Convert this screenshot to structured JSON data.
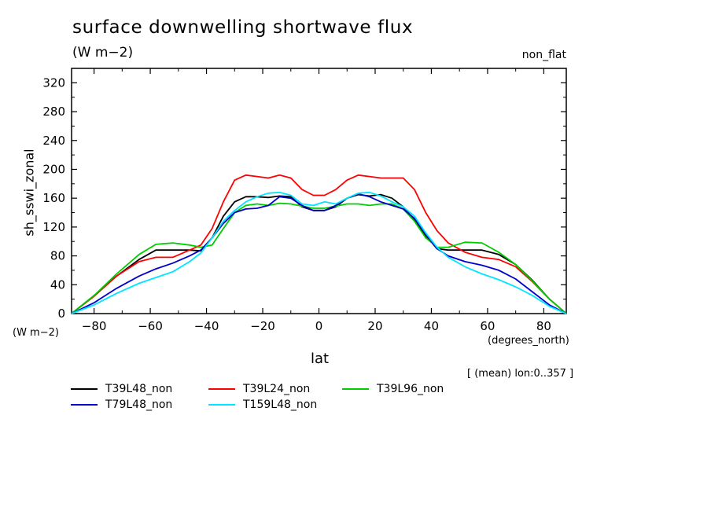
{
  "chart_data": {
    "type": "line",
    "title": "surface downwelling shortwave flux",
    "subtitle": "(W m−2)",
    "corner_label": "non_flat",
    "ylabel": "sh_sswi_zonal",
    "yunits": "(W m−2)",
    "xlabel": "lat",
    "xunits": "(degrees_north)",
    "note": "[ (mean) lon:0..357 ]",
    "xlim": [
      -88,
      88
    ],
    "ylim": [
      0,
      340
    ],
    "xticks": [
      -80,
      -60,
      -40,
      -20,
      0,
      20,
      40,
      60,
      80
    ],
    "xtick_labels": [
      "−80",
      "−60",
      "−40",
      "−20",
      "0",
      "20",
      "40",
      "60",
      "80"
    ],
    "yticks": [
      0,
      40,
      80,
      120,
      160,
      200,
      240,
      280,
      320
    ],
    "ytick_labels": [
      "0",
      "40",
      "80",
      "120",
      "160",
      "200",
      "240",
      "280",
      "320"
    ],
    "grid": false,
    "legend_position": "bottom",
    "series": [
      {
        "name": "T39L48_non",
        "color": "#000000",
        "x": [
          -88,
          -80,
          -72,
          -64,
          -58,
          -52,
          -46,
          -42,
          -38,
          -34,
          -30,
          -26,
          -22,
          -18,
          -14,
          -10,
          -6,
          -2,
          2,
          6,
          10,
          14,
          18,
          22,
          26,
          30,
          34,
          38,
          42,
          46,
          52,
          58,
          64,
          70,
          76,
          82,
          88
        ],
        "y": [
          0,
          25,
          52,
          75,
          88,
          88,
          88,
          87,
          105,
          135,
          155,
          162,
          162,
          161,
          163,
          162,
          148,
          143,
          143,
          148,
          160,
          165,
          163,
          165,
          160,
          148,
          130,
          108,
          90,
          88,
          88,
          88,
          82,
          68,
          46,
          20,
          0
        ]
      },
      {
        "name": "T39L24_non",
        "color": "#ff0000",
        "x": [
          -88,
          -80,
          -72,
          -64,
          -58,
          -52,
          -46,
          -42,
          -38,
          -34,
          -30,
          -26,
          -22,
          -18,
          -14,
          -10,
          -6,
          -2,
          2,
          6,
          10,
          14,
          18,
          22,
          26,
          30,
          34,
          38,
          42,
          46,
          52,
          58,
          64,
          70,
          76,
          82,
          88
        ],
        "y": [
          0,
          24,
          52,
          72,
          78,
          78,
          88,
          95,
          118,
          155,
          185,
          192,
          190,
          188,
          192,
          188,
          172,
          164,
          164,
          172,
          185,
          192,
          190,
          188,
          188,
          188,
          172,
          140,
          115,
          98,
          85,
          78,
          75,
          65,
          44,
          20,
          0
        ]
      },
      {
        "name": "T39L96_non",
        "color": "#00cc00",
        "x": [
          -88,
          -80,
          -72,
          -64,
          -58,
          -52,
          -46,
          -42,
          -38,
          -34,
          -30,
          -26,
          -22,
          -18,
          -14,
          -10,
          -6,
          -2,
          2,
          6,
          10,
          14,
          18,
          22,
          26,
          30,
          34,
          38,
          42,
          46,
          52,
          58,
          64,
          70,
          76,
          82,
          88
        ],
        "y": [
          0,
          25,
          55,
          82,
          96,
          98,
          95,
          92,
          95,
          118,
          140,
          150,
          152,
          150,
          153,
          152,
          149,
          146,
          146,
          149,
          152,
          152,
          150,
          152,
          152,
          145,
          128,
          105,
          92,
          92,
          99,
          98,
          85,
          68,
          45,
          20,
          0
        ]
      },
      {
        "name": "T79L48_non",
        "color": "#0000cc",
        "x": [
          -88,
          -80,
          -72,
          -64,
          -58,
          -52,
          -46,
          -42,
          -38,
          -34,
          -30,
          -26,
          -22,
          -18,
          -14,
          -10,
          -6,
          -2,
          2,
          6,
          10,
          14,
          18,
          22,
          26,
          30,
          34,
          38,
          42,
          46,
          52,
          58,
          64,
          70,
          76,
          82,
          88
        ],
        "y": [
          0,
          15,
          35,
          52,
          62,
          70,
          80,
          88,
          105,
          125,
          140,
          145,
          146,
          150,
          162,
          160,
          150,
          143,
          143,
          150,
          160,
          166,
          162,
          155,
          150,
          145,
          132,
          110,
          90,
          80,
          72,
          67,
          60,
          48,
          30,
          12,
          0
        ]
      },
      {
        "name": "T159L48_non",
        "color": "#00e5ff",
        "x": [
          -88,
          -80,
          -72,
          -64,
          -58,
          -52,
          -46,
          -42,
          -38,
          -34,
          -30,
          -26,
          -22,
          -18,
          -14,
          -10,
          -6,
          -2,
          2,
          6,
          10,
          14,
          18,
          22,
          26,
          30,
          34,
          38,
          42,
          46,
          52,
          58,
          64,
          70,
          76,
          82,
          88
        ],
        "y": [
          0,
          12,
          28,
          42,
          50,
          58,
          72,
          84,
          105,
          128,
          143,
          155,
          162,
          167,
          168,
          164,
          152,
          150,
          155,
          152,
          160,
          167,
          168,
          163,
          155,
          148,
          135,
          112,
          92,
          78,
          65,
          55,
          47,
          37,
          25,
          10,
          0
        ]
      }
    ]
  }
}
